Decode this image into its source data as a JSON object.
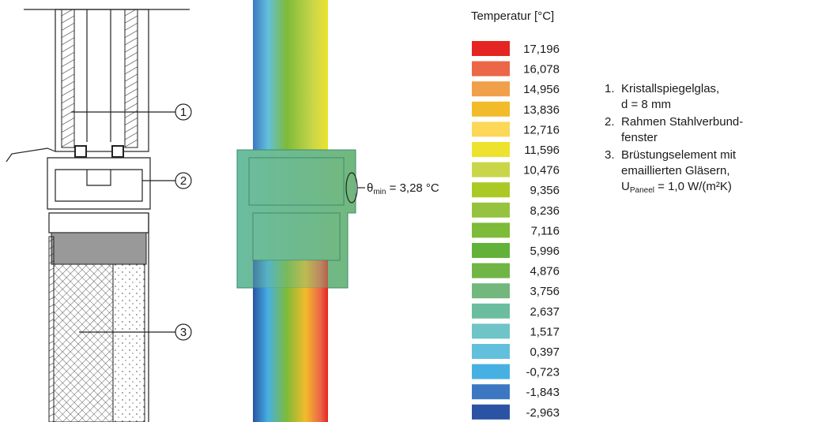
{
  "callouts": [
    "1",
    "2",
    "3"
  ],
  "annotation": {
    "symbol": "θ",
    "subscript": "min",
    "text": " = 3,28 °C"
  },
  "legend": {
    "title": "Temperatur [°C]",
    "items": [
      {
        "label": "17,196",
        "color": "#e52521"
      },
      {
        "label": "16,078",
        "color": "#ec6648"
      },
      {
        "label": "14,956",
        "color": "#f0a04b"
      },
      {
        "label": "13,836",
        "color": "#f2bb2a"
      },
      {
        "label": "12,716",
        "color": "#fcd758"
      },
      {
        "label": "11,596",
        "color": "#ede32e"
      },
      {
        "label": "10,476",
        "color": "#cad64a"
      },
      {
        "label": "9,356",
        "color": "#aac925"
      },
      {
        "label": "8,236",
        "color": "#96c33f"
      },
      {
        "label": "7,116",
        "color": "#7ebb38"
      },
      {
        "label": "5,996",
        "color": "#62b23a"
      },
      {
        "label": "4,876",
        "color": "#71b547"
      },
      {
        "label": "3,756",
        "color": "#72b77d"
      },
      {
        "label": "2,637",
        "color": "#6bbda0"
      },
      {
        "label": "1,517",
        "color": "#6ec4c7"
      },
      {
        "label": "0,397",
        "color": "#62c0dc"
      },
      {
        "label": "-0,723",
        "color": "#46b0e3"
      },
      {
        "label": "-1,843",
        "color": "#3c78c1"
      },
      {
        "label": "-2,963",
        "color": "#2b53a3"
      }
    ]
  },
  "list": [
    {
      "number": "1.",
      "lines": [
        "Kristallspiegelglas,",
        "d = 8 mm"
      ]
    },
    {
      "number": "2.",
      "lines": [
        "Rahmen Stahlverbund-",
        "fenster"
      ]
    },
    {
      "number": "3.",
      "lines": [
        "Brüstungselement mit",
        "emaillierten Gläsern,"
      ],
      "u": {
        "symbol": "U",
        "subscript": "Paneel",
        "text": " = 1,0 W/(m²K)"
      }
    }
  ]
}
